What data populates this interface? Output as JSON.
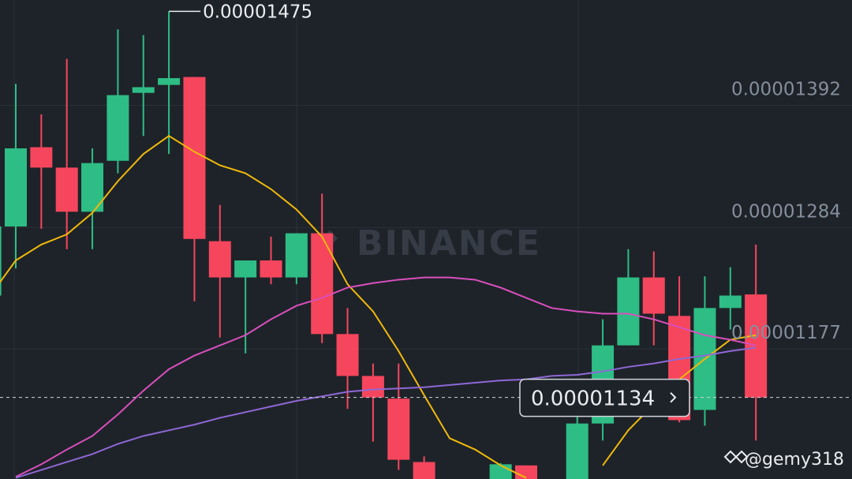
{
  "chart_data": {
    "type": "candlestick",
    "watermark": "BINANCE",
    "credit": "@gemy318",
    "ylim": [
      1.062e-05,
      1.485e-05
    ],
    "yticks": [
      1.392e-05,
      1.284e-05,
      1.177e-05
    ],
    "grid": true,
    "up_color": "#2ebd85",
    "down_color": "#f6465d",
    "open": [
      1.224e-05,
      1.285e-05,
      1.355e-05,
      1.337e-05,
      1.298e-05,
      1.343e-05,
      1.403e-05,
      1.41e-05,
      1.417e-05,
      1.272e-05,
      1.24e-05,
      1.255e-05,
      1.24e-05,
      1.279e-05,
      1.19e-05,
      1.153e-05,
      1.133e-05,
      1.077e-05,
      null,
      null,
      1.062e-05,
      1.074e-05,
      null,
      1.062e-05,
      1.111e-05,
      1.18e-05,
      1.24e-05,
      1.206e-05,
      1.123e-05,
      1.213e-05,
      1.225e-05
    ],
    "high": [
      1.285e-05,
      1.411e-05,
      1.384e-05,
      1.433e-05,
      1.354e-05,
      1.459e-05,
      1.454e-05,
      1.475e-05,
      1.417e-05,
      1.304e-05,
      1.255e-05,
      1.276e-05,
      1.279e-05,
      1.314e-05,
      1.213e-05,
      1.164e-05,
      1.164e-05,
      1.082e-05,
      null,
      null,
      1.076e-05,
      1.074e-05,
      null,
      1.117e-05,
      1.203e-05,
      1.265e-05,
      1.263e-05,
      1.241e-05,
      1.241e-05,
      1.249e-05,
      1.269e-05
    ],
    "low": [
      1.224e-05,
      1.248e-05,
      1.283e-05,
      1.265e-05,
      1.265e-05,
      1.332e-05,
      1.365e-05,
      1.349e-05,
      1.219e-05,
      1.187e-05,
      1.173e-05,
      1.234e-05,
      1.234e-05,
      1.182e-05,
      1.124e-05,
      1.095e-05,
      1.07e-05,
      1.062e-05,
      null,
      null,
      1.062e-05,
      1.062e-05,
      null,
      1.062e-05,
      1.096e-05,
      1.18e-05,
      1.18e-05,
      1.112e-05,
      1.109e-05,
      1.194e-05,
      1.096e-05
    ],
    "close": [
      1.285e-05,
      1.354e-05,
      1.337e-05,
      1.298e-05,
      1.341e-05,
      1.401e-05,
      1.408e-05,
      1.416e-05,
      1.274e-05,
      1.24e-05,
      1.255e-05,
      1.24e-05,
      1.279e-05,
      1.19e-05,
      1.153e-05,
      1.134e-05,
      1.079e-05,
      1.062e-05,
      null,
      null,
      1.075e-05,
      1.062e-05,
      null,
      1.111e-05,
      1.18e-05,
      1.24e-05,
      1.208e-05,
      1.114e-05,
      1.213e-05,
      1.224e-05,
      1.134e-05
    ],
    "max_label": "0.00001475",
    "last_price": 1.134e-05,
    "series": [
      {
        "color": "#f0b90b",
        "values": [
          1.224e-05,
          1.255e-05,
          1.269e-05,
          1.278e-05,
          1.297e-05,
          1.325e-05,
          1.349e-05,
          1.365e-05,
          1.351e-05,
          1.339e-05,
          1.332e-05,
          1.318e-05,
          1.3e-05,
          1.276e-05,
          1.234e-05,
          1.21e-05,
          1.175e-05,
          1.136e-05,
          1.098e-05,
          1.088e-05,
          1.074e-05,
          1.063e-05,
          null,
          null,
          1.074e-05,
          1.105e-05,
          1.128e-05,
          1.15e-05,
          1.168e-05,
          1.185e-05,
          1.189e-05
        ]
      },
      {
        "color": "#d94fbd",
        "values": [
          null,
          1.064e-05,
          1.075e-05,
          1.088e-05,
          1.1e-05,
          1.119e-05,
          1.14e-05,
          1.159e-05,
          1.171e-05,
          1.18e-05,
          1.189e-05,
          1.203e-05,
          1.215e-05,
          1.222e-05,
          1.231e-05,
          1.235e-05,
          1.238e-05,
          1.24e-05,
          1.24e-05,
          1.238e-05,
          1.231e-05,
          1.222e-05,
          1.213e-05,
          1.21e-05,
          1.208e-05,
          1.208e-05,
          1.203e-05,
          1.196e-05,
          1.189e-05,
          1.185e-05,
          1.18e-05
        ]
      },
      {
        "color": "#8e68d6",
        "values": [
          null,
          1.063e-05,
          1.07e-05,
          1.077e-05,
          1.084e-05,
          1.093e-05,
          1.1e-05,
          1.105e-05,
          1.11e-05,
          1.116e-05,
          1.121e-05,
          1.126e-05,
          1.131e-05,
          1.135e-05,
          1.139e-05,
          1.141e-05,
          1.142e-05,
          1.143e-05,
          1.145e-05,
          1.147e-05,
          1.149e-05,
          1.15e-05,
          1.153e-05,
          1.154e-05,
          1.157e-05,
          1.161e-05,
          1.164e-05,
          1.168e-05,
          1.171e-05,
          1.175e-05,
          1.178e-05
        ]
      }
    ]
  }
}
